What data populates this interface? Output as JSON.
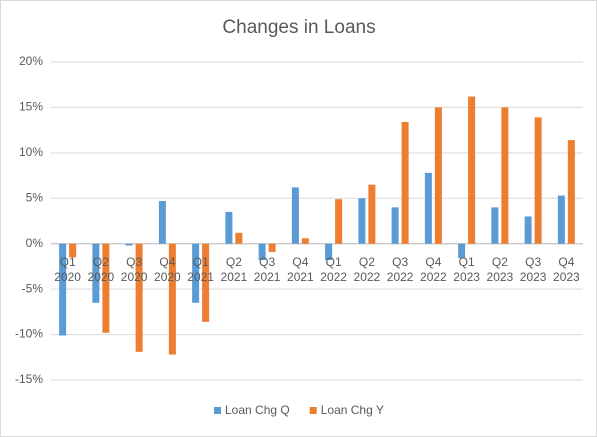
{
  "chart_data": {
    "type": "bar",
    "title": "Changes in Loans",
    "categories": [
      "Q1 2020",
      "Q2 2020",
      "Q3 2020",
      "Q4 2020",
      "Q1 2021",
      "Q2 2021",
      "Q3 2021",
      "Q4 2021",
      "Q1 2022",
      "Q2 2022",
      "Q3 2022",
      "Q4 2022",
      "Q1 2023",
      "Q2 2023",
      "Q3 2023",
      "Q4 2023"
    ],
    "series": [
      {
        "name": "Loan Chg Q",
        "color": "#5b9bd5",
        "values": [
          -10.1,
          -6.5,
          -0.2,
          4.7,
          -6.5,
          3.5,
          -1.8,
          6.2,
          -1.8,
          5.0,
          4.0,
          7.8,
          -1.6,
          4.0,
          3.0,
          5.3
        ]
      },
      {
        "name": "Loan Chg Y",
        "color": "#ed7d31",
        "values": [
          -1.5,
          -9.8,
          -11.9,
          -12.2,
          -8.6,
          1.2,
          -0.9,
          0.6,
          4.9,
          6.5,
          13.4,
          15.0,
          16.2,
          15.0,
          13.9,
          11.4
        ]
      }
    ],
    "ylim": [
      -15,
      20
    ],
    "yticks": [
      {
        "value": -15,
        "label": "-15%"
      },
      {
        "value": -10,
        "label": "-10%"
      },
      {
        "value": -5,
        "label": "-5%"
      },
      {
        "value": 0,
        "label": "0%"
      },
      {
        "value": 5,
        "label": "5%"
      },
      {
        "value": 10,
        "label": "10%"
      },
      {
        "value": 15,
        "label": "15%"
      },
      {
        "value": 20,
        "label": "20%"
      }
    ],
    "grid": true,
    "legend": "bottom"
  }
}
